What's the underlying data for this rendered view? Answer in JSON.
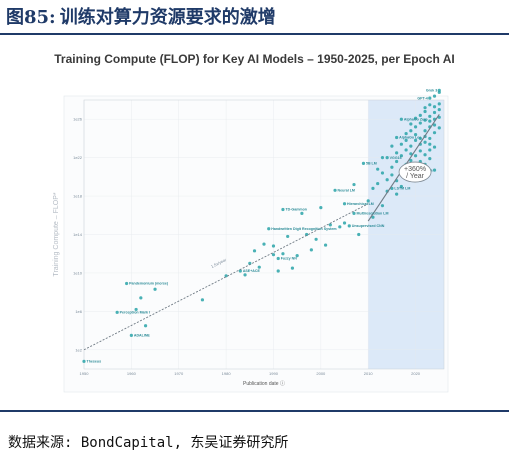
{
  "header": {
    "figure_no": "图85:",
    "title": "训练对算力资源要求的激增"
  },
  "footer": {
    "source": "数据来源: BondCapital, 东吴证券研究所"
  },
  "colors": {
    "header_text": "#1f3a68",
    "point": "#29a3a8",
    "trend": "#6f7a84",
    "highlight_band": "#dce9f8"
  },
  "chart_data": {
    "type": "scatter",
    "title": "Training Compute (FLOP) for Key AI Models – 1950-2025, per Epoch AI",
    "xlabel": "Publication date",
    "ylabel": "Training Compute – FLOP*",
    "xlim": [
      1950,
      2026
    ],
    "ylim_log10": [
      0,
      28
    ],
    "scale": "log",
    "x_ticks": [
      "1950",
      "1960",
      "1970",
      "1980",
      "1990",
      "2000",
      "2010",
      "2020"
    ],
    "y_ticks": [
      "1e2",
      "1e6",
      "1e10",
      "1e14",
      "1e18",
      "1e22",
      "1e26"
    ],
    "highlight_region": {
      "from": 2010,
      "to": 2026
    },
    "trend_lines": [
      {
        "label": "1.5x/year",
        "from": [
          1950,
          2.0
        ],
        "to": [
          2010,
          17.2
        ]
      },
      {
        "label": "+360% / Year",
        "from": [
          2010,
          15.4
        ],
        "to": [
          2025,
          26.5
        ]
      }
    ],
    "annotation": {
      "text_line1": "+360%",
      "text_line2": "/ Year",
      "x": 2022,
      "y": 20.5
    },
    "labeled_models": [
      {
        "name": "Theseus",
        "x": 1950,
        "y": 0.8
      },
      {
        "name": "ADALINE",
        "x": 1960,
        "y": 3.5
      },
      {
        "name": "Perceptron Mark I",
        "x": 1957,
        "y": 5.9
      },
      {
        "name": "Pandemonium (morse)",
        "x": 1959,
        "y": 8.9
      },
      {
        "name": "ASE+ACE",
        "x": 1983,
        "y": 10.2
      },
      {
        "name": "Fuzzy NN",
        "x": 1991,
        "y": 11.5
      },
      {
        "name": "Handwritten Digit Recognition System",
        "x": 1989,
        "y": 14.6
      },
      {
        "name": "TD-Gammon",
        "x": 1992,
        "y": 16.6
      },
      {
        "name": "Neural LM",
        "x": 2003,
        "y": 18.6
      },
      {
        "name": "Hierarchical LM",
        "x": 2005,
        "y": 17.2
      },
      {
        "name": "Multiresolution LM",
        "x": 2007,
        "y": 16.2
      },
      {
        "name": "Unsupervised CNN",
        "x": 2006,
        "y": 14.9
      },
      {
        "name": "5B LM",
        "x": 2009,
        "y": 21.4
      },
      {
        "name": "LSTM LM",
        "x": 2015,
        "y": 18.8
      },
      {
        "name": "VGG16",
        "x": 2014,
        "y": 22.0
      },
      {
        "name": "AlphaGo Lee",
        "x": 2016,
        "y": 24.1
      },
      {
        "name": "AlphaGo Zero",
        "x": 2017,
        "y": 26.0
      },
      {
        "name": "GPT-4",
        "x": 2023,
        "y": 28.2
      },
      {
        "name": "Grok 3",
        "x": 2025,
        "y": 29.0
      },
      {
        "name": "Sora",
        "x": 2024,
        "y": 20.7
      }
    ],
    "points": [
      [
        1950,
        0.8
      ],
      [
        1957,
        5.9
      ],
      [
        1959,
        8.9
      ],
      [
        1960,
        3.5
      ],
      [
        1961,
        6.2
      ],
      [
        1962,
        7.4
      ],
      [
        1963,
        4.5
      ],
      [
        1965,
        8.3
      ],
      [
        1975,
        7.2
      ],
      [
        1980,
        9.7
      ],
      [
        1983,
        10.2
      ],
      [
        1984,
        9.8
      ],
      [
        1985,
        11.0
      ],
      [
        1986,
        12.3
      ],
      [
        1987,
        10.6
      ],
      [
        1988,
        13.0
      ],
      [
        1989,
        14.6
      ],
      [
        1990,
        11.9
      ],
      [
        1990,
        12.8
      ],
      [
        1991,
        11.5
      ],
      [
        1991,
        10.2
      ],
      [
        1992,
        16.6
      ],
      [
        1992,
        12.0
      ],
      [
        1993,
        13.8
      ],
      [
        1994,
        10.5
      ],
      [
        1995,
        11.8
      ],
      [
        1996,
        16.2
      ],
      [
        1997,
        14.0
      ],
      [
        1998,
        12.4
      ],
      [
        1999,
        13.5
      ],
      [
        2000,
        16.8
      ],
      [
        2001,
        12.9
      ],
      [
        2002,
        15.0
      ],
      [
        2003,
        18.6
      ],
      [
        2004,
        14.8
      ],
      [
        2005,
        17.2
      ],
      [
        2005,
        15.2
      ],
      [
        2006,
        14.9
      ],
      [
        2007,
        16.2
      ],
      [
        2007,
        19.2
      ],
      [
        2008,
        14.0
      ],
      [
        2009,
        21.4
      ],
      [
        2010,
        17.5
      ],
      [
        2011,
        18.8
      ],
      [
        2011,
        15.8
      ],
      [
        2012,
        19.3
      ],
      [
        2012,
        20.8
      ],
      [
        2013,
        17.0
      ],
      [
        2013,
        22.0
      ],
      [
        2013,
        20.4
      ],
      [
        2014,
        22.0
      ],
      [
        2014,
        19.7
      ],
      [
        2014,
        18.5
      ],
      [
        2015,
        18.8
      ],
      [
        2015,
        21.0
      ],
      [
        2015,
        23.2
      ],
      [
        2015,
        20.2
      ],
      [
        2016,
        24.1
      ],
      [
        2016,
        22.5
      ],
      [
        2016,
        19.6
      ],
      [
        2016,
        21.6
      ],
      [
        2016,
        18.2
      ],
      [
        2017,
        26.0
      ],
      [
        2017,
        23.4
      ],
      [
        2017,
        20.8
      ],
      [
        2017,
        22.2
      ],
      [
        2017,
        19.0
      ],
      [
        2018,
        22.8
      ],
      [
        2018,
        24.5
      ],
      [
        2018,
        21.3
      ],
      [
        2018,
        20.1
      ],
      [
        2018,
        23.8
      ],
      [
        2019,
        23.2
      ],
      [
        2019,
        21.7
      ],
      [
        2019,
        24.8
      ],
      [
        2019,
        22.4
      ],
      [
        2019,
        20.6
      ],
      [
        2019,
        25.5
      ],
      [
        2020,
        23.8
      ],
      [
        2020,
        22.2
      ],
      [
        2020,
        25.2
      ],
      [
        2020,
        21.0
      ],
      [
        2020,
        24.4
      ],
      [
        2020,
        20.2
      ],
      [
        2020,
        26.1
      ],
      [
        2021,
        24.0
      ],
      [
        2021,
        22.7
      ],
      [
        2021,
        25.6
      ],
      [
        2021,
        23.4
      ],
      [
        2021,
        21.6
      ],
      [
        2021,
        26.4
      ],
      [
        2021,
        20.8
      ],
      [
        2022,
        24.8
      ],
      [
        2022,
        23.6
      ],
      [
        2022,
        25.9
      ],
      [
        2022,
        22.3
      ],
      [
        2022,
        26.8
      ],
      [
        2022,
        21.3
      ],
      [
        2022,
        24.2
      ],
      [
        2022,
        27.2
      ],
      [
        2023,
        25.2
      ],
      [
        2023,
        24.0
      ],
      [
        2023,
        26.3
      ],
      [
        2023,
        22.8
      ],
      [
        2023,
        27.5
      ],
      [
        2023,
        23.4
      ],
      [
        2023,
        28.2
      ],
      [
        2023,
        25.8
      ],
      [
        2023,
        21.9
      ],
      [
        2024,
        26.0
      ],
      [
        2024,
        24.6
      ],
      [
        2024,
        27.3
      ],
      [
        2024,
        23.1
      ],
      [
        2024,
        28.4
      ],
      [
        2024,
        25.4
      ],
      [
        2024,
        20.7
      ],
      [
        2024,
        26.7
      ],
      [
        2025,
        27.6
      ],
      [
        2025,
        25.1
      ],
      [
        2025,
        28.8
      ],
      [
        2025,
        26.2
      ],
      [
        2025,
        29.0
      ],
      [
        2025,
        27.0
      ]
    ]
  }
}
